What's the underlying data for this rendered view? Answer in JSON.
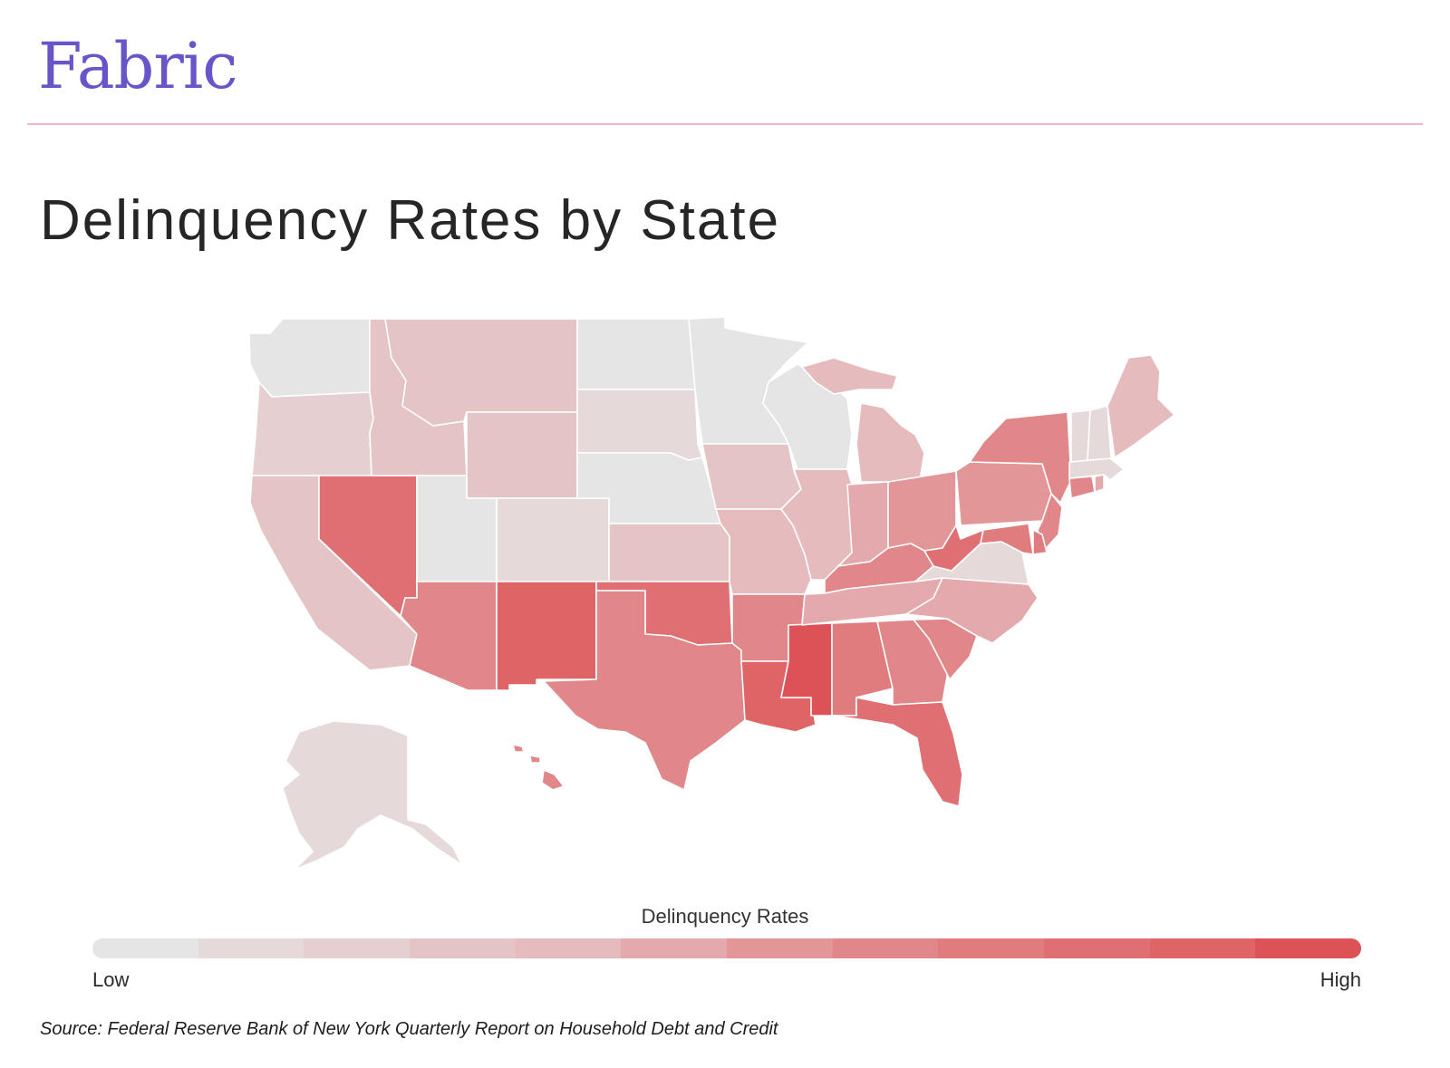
{
  "brand": "Fabric",
  "title": "Delinquency Rates by State",
  "legend": {
    "title": "Delinquency Rates",
    "low_label": "Low",
    "high_label": "High",
    "colors": [
      "#e5e5e6",
      "#e6d9da",
      "#e5cfd0",
      "#e5c4c6",
      "#e5bbbd",
      "#e4a9ac",
      "#e29698",
      "#e18789",
      "#e07b7e",
      "#df6f72",
      "#de6466",
      "#dd5256"
    ]
  },
  "source": "Source: Federal Reserve Bank of New York Quarterly Report on Household Debt and Credit",
  "states": {
    "WA": 0,
    "OR": 2,
    "CA": 3,
    "NV": 9,
    "ID": 3,
    "MT": 3,
    "WY": 3,
    "UT": 0,
    "CO": 1,
    "AZ": 7,
    "NM": 10,
    "ND": 0,
    "SD": 1,
    "NE": 0,
    "KS": 3,
    "OK": 9,
    "TX": 7,
    "MN": 0,
    "IA": 3,
    "MO": 4,
    "AR": 7,
    "LA": 10,
    "WI": 0,
    "IL": 4,
    "MS": 11,
    "MI": 4,
    "IN": 5,
    "OH": 6,
    "KY": 7,
    "TN": 5,
    "AL": 8,
    "GA": 7,
    "FL": 9,
    "SC": 7,
    "NC": 5,
    "VA": 1,
    "WV": 9,
    "PA": 6,
    "NY": 7,
    "NJ": 7,
    "DE": 8,
    "MD": 8,
    "CT": 7,
    "RI": 5,
    "MA": 1,
    "VT": 1,
    "NH": 1,
    "ME": 4,
    "AK": 1,
    "HI": 7
  }
}
